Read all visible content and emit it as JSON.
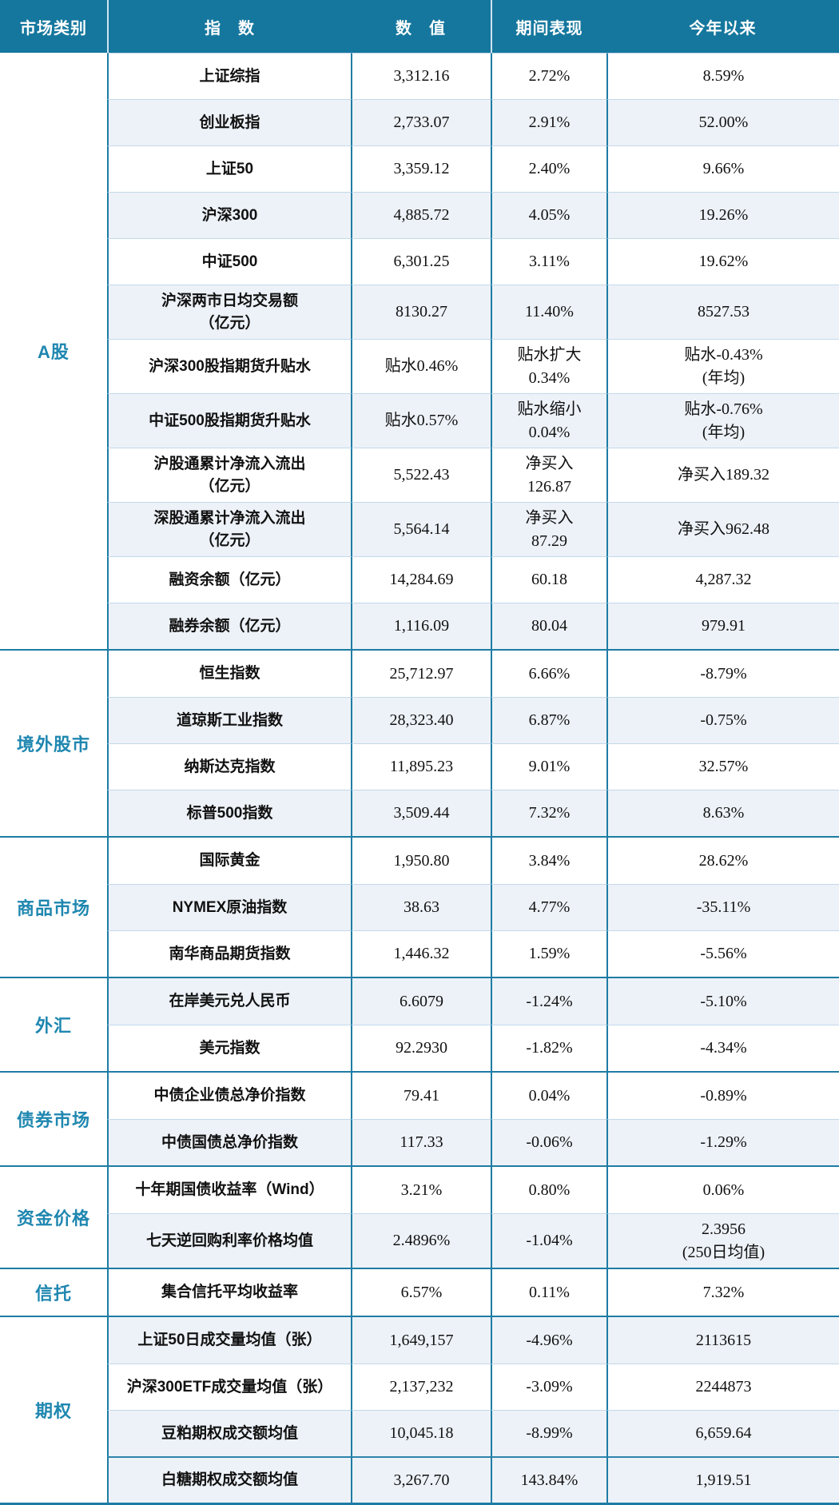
{
  "header": {
    "columns": [
      "市场类别",
      "指　数",
      "数　值",
      "期间表现",
      "今年以来"
    ]
  },
  "colors": {
    "header_bg": "#15779e",
    "header_text": "#ffffff",
    "header_sep": "#cfe3ee",
    "category_text": "#1f87b0",
    "shade_row_bg": "#edf2f8",
    "grid_line": "#1e7ca4",
    "row_line": "#c3d9ea",
    "strong_row_line": "#2e84ab",
    "text": "#111111"
  },
  "sections": [
    {
      "category": "A股",
      "rows": [
        {
          "index": "上证综指",
          "value": "3,312.16",
          "period": "2.72%",
          "ytd": "8.59%",
          "shade": false
        },
        {
          "index": "创业板指",
          "value": "2,733.07",
          "period": "2.91%",
          "ytd": "52.00%",
          "shade": true
        },
        {
          "index": "上证50",
          "value": "3,359.12",
          "period": "2.40%",
          "ytd": "9.66%",
          "shade": false
        },
        {
          "index": "沪深300",
          "value": "4,885.72",
          "period": "4.05%",
          "ytd": "19.26%",
          "shade": true
        },
        {
          "index": "中证500",
          "value": "6,301.25",
          "period": "3.11%",
          "ytd": "19.62%",
          "shade": false
        },
        {
          "index": "沪深两市日均交易额\n（亿元）",
          "value": "8130.27",
          "period": "11.40%",
          "ytd": "8527.53",
          "shade": true
        },
        {
          "index": "沪深300股指期货升贴水",
          "value": "贴水0.46%",
          "period": "贴水扩大\n0.34%",
          "ytd": "贴水-0.43%\n(年均)",
          "shade": false
        },
        {
          "index": "中证500股指期货升贴水",
          "value": "贴水0.57%",
          "period": "贴水缩小\n0.04%",
          "ytd": "贴水-0.76%\n(年均)",
          "shade": true
        },
        {
          "index": "沪股通累计净流入流出\n（亿元）",
          "value": "5,522.43",
          "period": "净买入\n126.87",
          "ytd": "净买入189.32",
          "shade": false
        },
        {
          "index": "深股通累计净流入流出\n（亿元）",
          "value": "5,564.14",
          "period": "净买入\n87.29",
          "ytd": "净买入962.48",
          "shade": true
        },
        {
          "index": "融资余额（亿元）",
          "value": "14,284.69",
          "period": "60.18",
          "ytd": "4,287.32",
          "shade": false
        },
        {
          "index": "融券余额（亿元）",
          "value": "1,116.09",
          "period": "80.04",
          "ytd": "979.91",
          "shade": true
        }
      ]
    },
    {
      "category": "境外股市",
      "rows": [
        {
          "index": "恒生指数",
          "value": "25,712.97",
          "period": "6.66%",
          "ytd": "-8.79%",
          "shade": false
        },
        {
          "index": "道琼斯工业指数",
          "value": "28,323.40",
          "period": "6.87%",
          "ytd": "-0.75%",
          "shade": true
        },
        {
          "index": "纳斯达克指数",
          "value": "11,895.23",
          "period": "9.01%",
          "ytd": "32.57%",
          "shade": false
        },
        {
          "index": "标普500指数",
          "value": "3,509.44",
          "period": "7.32%",
          "ytd": "8.63%",
          "shade": true
        }
      ]
    },
    {
      "category": "商品市场",
      "rows": [
        {
          "index": "国际黄金",
          "value": "1,950.80",
          "period": "3.84%",
          "ytd": "28.62%",
          "shade": false
        },
        {
          "index": "NYMEX原油指数",
          "value": "38.63",
          "period": "4.77%",
          "ytd": "-35.11%",
          "shade": true
        },
        {
          "index": "南华商品期货指数",
          "value": "1,446.32",
          "period": "1.59%",
          "ytd": "-5.56%",
          "shade": false
        }
      ]
    },
    {
      "category": "外汇",
      "rows": [
        {
          "index": "在岸美元兑人民币",
          "value": "6.6079",
          "period": "-1.24%",
          "ytd": "-5.10%",
          "shade": true
        },
        {
          "index": "美元指数",
          "value": "92.2930",
          "period": "-1.82%",
          "ytd": "-4.34%",
          "shade": false
        }
      ]
    },
    {
      "category": "债券市场",
      "rows": [
        {
          "index": "中债企业债总净价指数",
          "value": "79.41",
          "period": "0.04%",
          "ytd": "-0.89%",
          "shade": false
        },
        {
          "index": "中债国债总净价指数",
          "value": "117.33",
          "period": "-0.06%",
          "ytd": "-1.29%",
          "shade": true
        }
      ]
    },
    {
      "category": "资金价格",
      "rows": [
        {
          "index": "十年期国债收益率（Wind）",
          "value": "3.21%",
          "period": "0.80%",
          "ytd": "0.06%",
          "shade": false
        },
        {
          "index": "七天逆回购利率价格均值",
          "value": "2.4896%",
          "period": "-1.04%",
          "ytd": "2.3956\n(250日均值)",
          "shade": true
        }
      ]
    },
    {
      "category": "信托",
      "rows": [
        {
          "index": "集合信托平均收益率",
          "value": "6.57%",
          "period": "0.11%",
          "ytd": "7.32%",
          "shade": false
        }
      ]
    },
    {
      "category": "期权",
      "rows": [
        {
          "index": "上证50日成交量均值（张）",
          "value": "1,649,157",
          "period": "-4.96%",
          "ytd": "2113615",
          "shade": true
        },
        {
          "index": "沪深300ETF成交量均值（张）",
          "value": "2,137,232",
          "period": "-3.09%",
          "ytd": "2244873",
          "shade": false
        },
        {
          "index": "豆粕期权成交额均值",
          "value": "10,045.18",
          "period": "-8.99%",
          "ytd": "6,659.64",
          "shade": true
        },
        {
          "index": "白糖期权成交额均值",
          "value": "3,267.70",
          "period": "143.84%",
          "ytd": "1,919.51",
          "shade": true,
          "strong_sep": true
        }
      ]
    }
  ]
}
